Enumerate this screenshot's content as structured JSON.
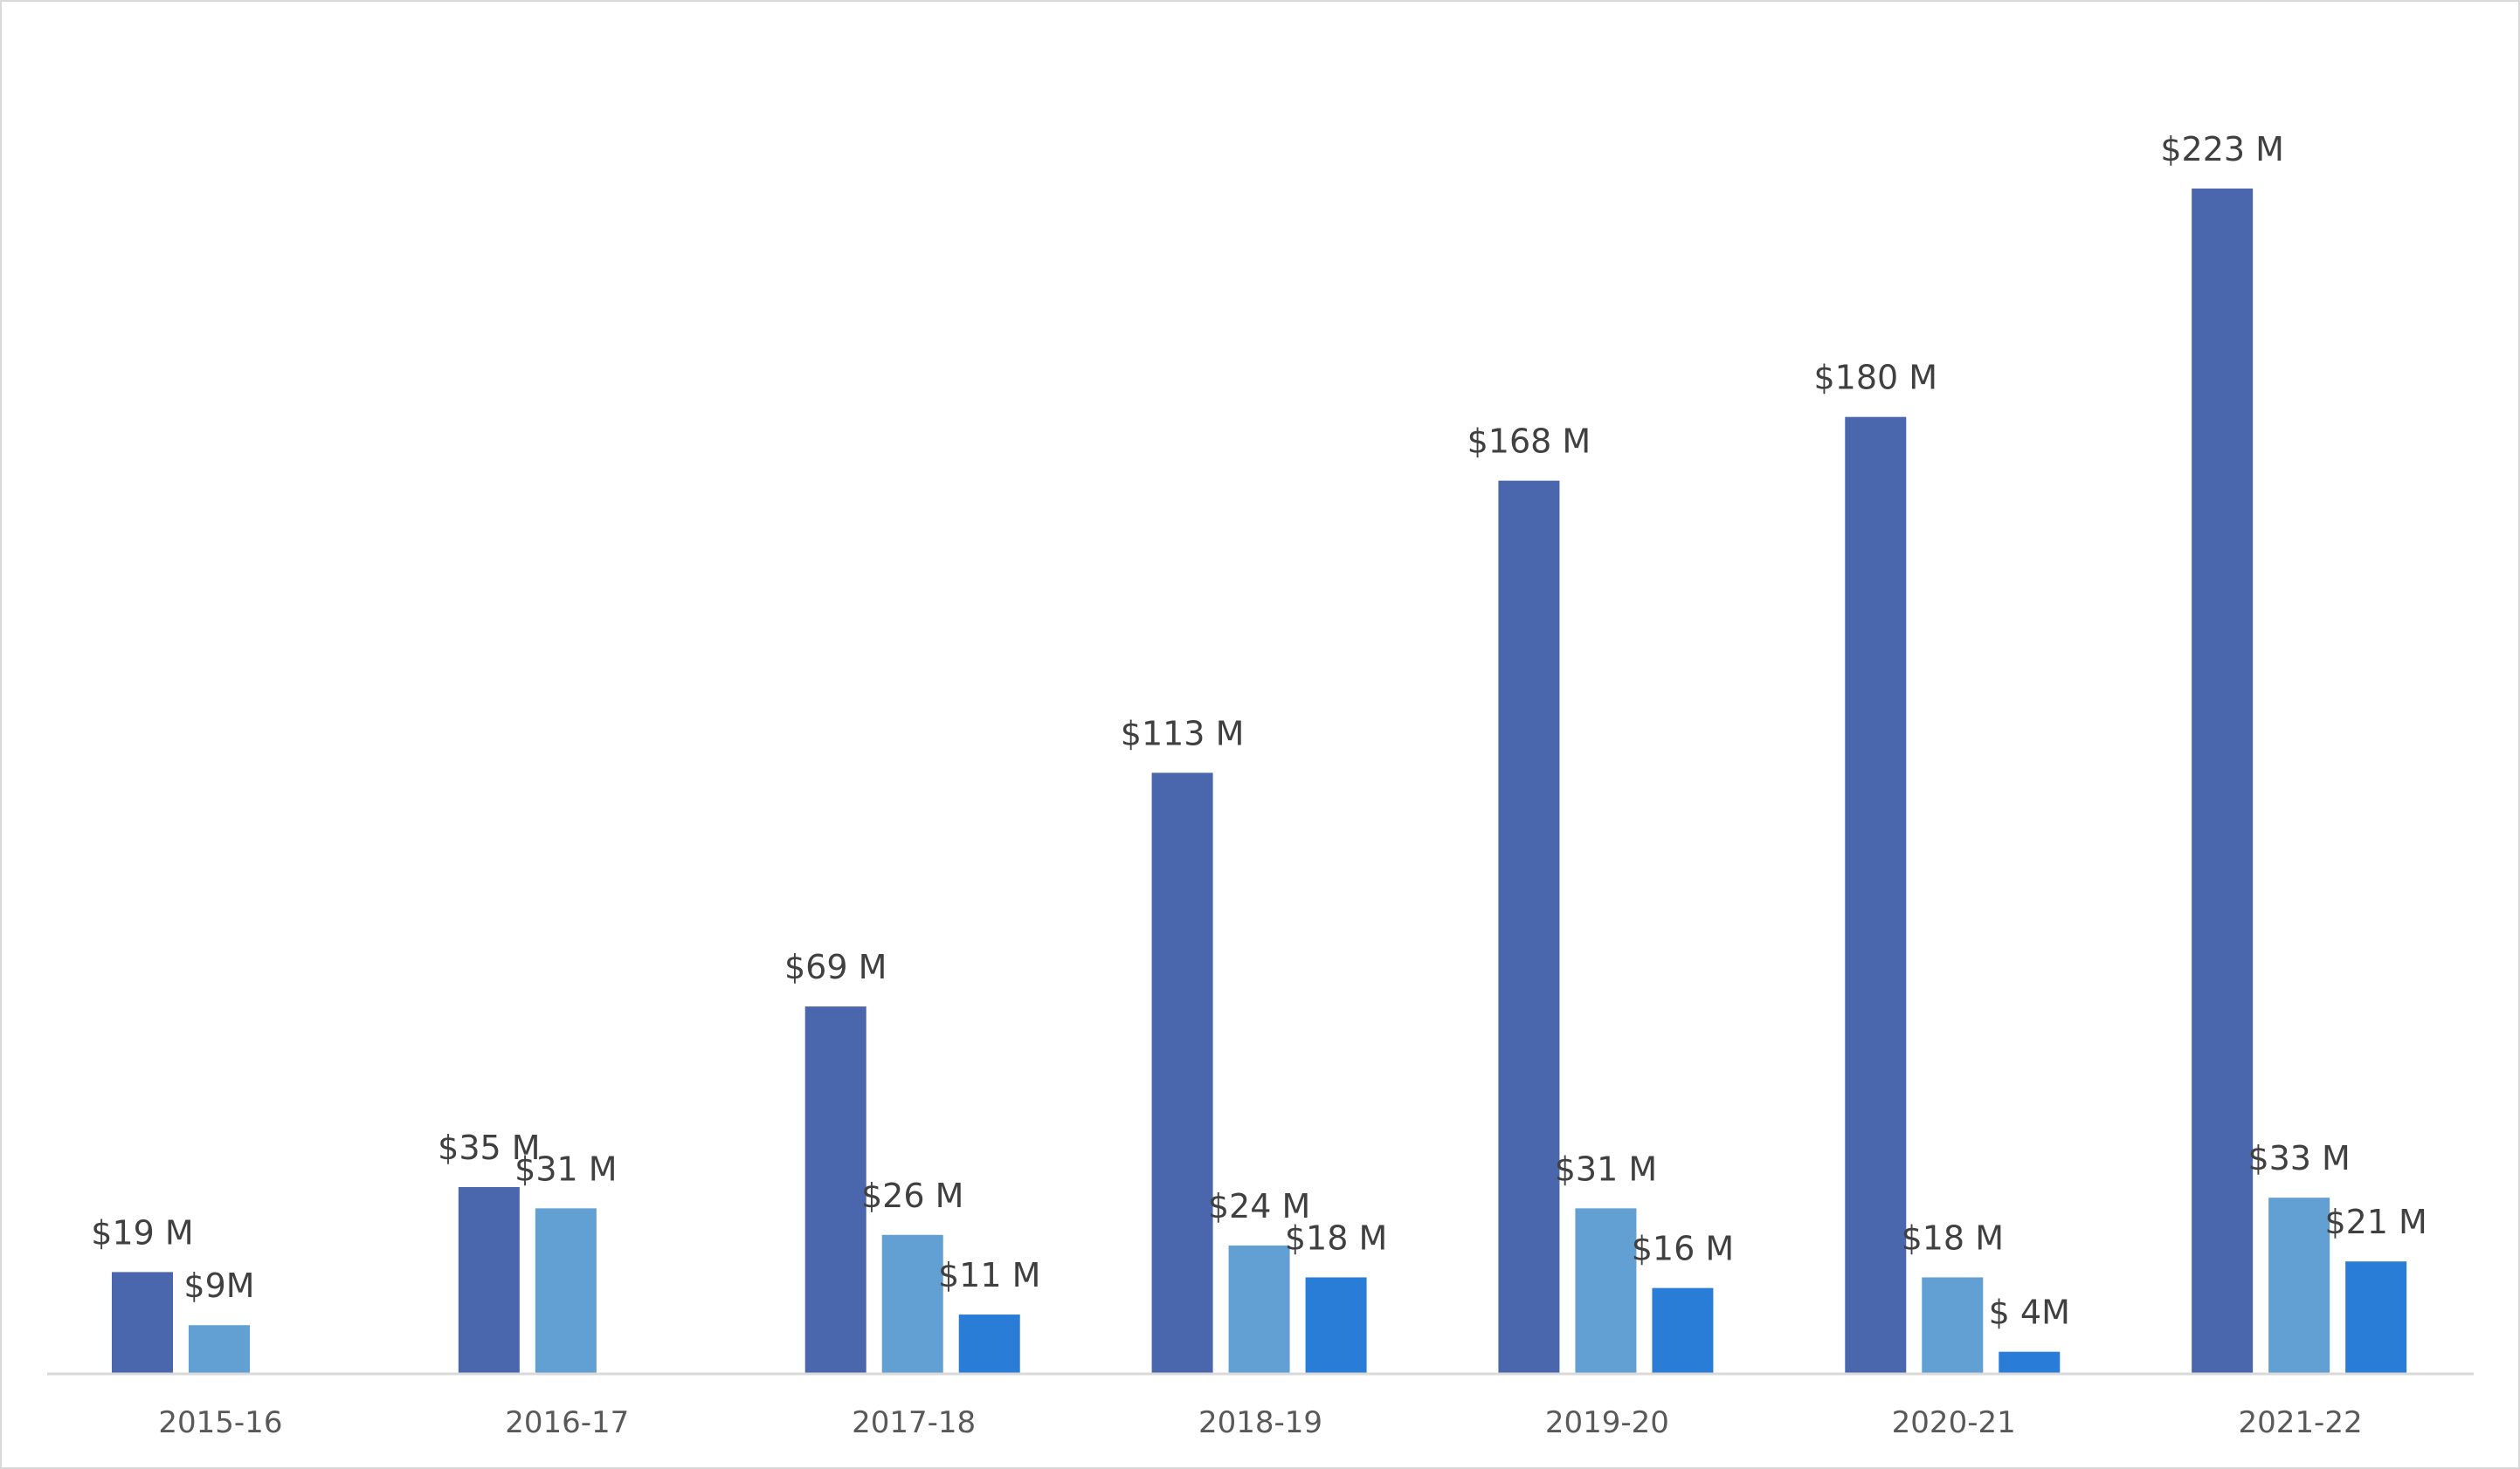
{
  "chart_data": {
    "type": "bar",
    "categories": [
      "2015-16",
      "2016-17",
      "2017-18",
      "2018-19",
      "2019-20",
      "2020-21",
      "2021-22"
    ],
    "series": [
      {
        "color": "#4a66ad",
        "values": [
          19,
          35,
          69,
          113,
          168,
          180,
          223
        ],
        "labels": [
          "$19 M",
          "$35 M",
          "$69 M",
          "$113 M",
          "$168 M",
          "$180 M",
          "$223 M"
        ]
      },
      {
        "color": "#629fd3",
        "values": [
          9,
          31,
          26,
          24,
          31,
          18,
          33
        ],
        "labels": [
          "$9M",
          "$31 M",
          "$26 M",
          "$24 M",
          "$31 M",
          "$18 M",
          "$33 M"
        ]
      },
      {
        "color": "#2a7dd6",
        "values": [
          null,
          null,
          11,
          18,
          16,
          4,
          21
        ],
        "labels": [
          "",
          "",
          "$11 M",
          "$18 M",
          "$16 M",
          "$ 4M",
          "$21 M"
        ]
      }
    ],
    "title": "",
    "xlabel": "",
    "ylabel": "",
    "ylim": [
      0,
      223
    ],
    "grid": false,
    "legend": "none",
    "axis_color": "#d9d9d9"
  }
}
